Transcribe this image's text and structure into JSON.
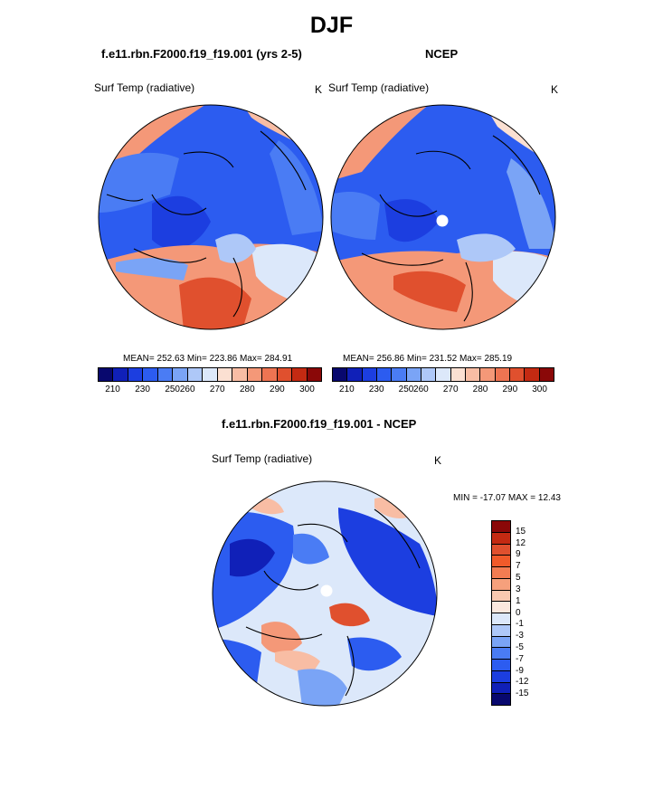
{
  "page": {
    "title": "DJF"
  },
  "panels": [
    {
      "name": "model",
      "subtitle": "f.e11.rbn.F2000.f19_f19.001 (yrs 2-5)",
      "left_label": "Surf Temp (radiative)",
      "right_label": "K",
      "stats": "MEAN= 252.63  Min= 223.86  Max= 284.91",
      "ticks": [
        "210",
        "230",
        "250",
        "260",
        "270",
        "280",
        "290",
        "300"
      ]
    },
    {
      "name": "ncep",
      "subtitle": "NCEP",
      "left_label": "Surf Temp (radiative)",
      "right_label": "K",
      "stats": "MEAN= 256.86  Min= 231.52  Max= 285.19",
      "ticks": [
        "210",
        "230",
        "250",
        "260",
        "270",
        "280",
        "290",
        "300"
      ]
    },
    {
      "name": "difference",
      "subtitle": "f.e11.rbn.F2000.f19_f19.001 - NCEP",
      "left_label": "Surf Temp (radiative)",
      "right_label": "K",
      "stats": "MIN = -17.07 MAX =  12.43",
      "ticks": [
        "15",
        "12",
        "9",
        "7",
        "5",
        "3",
        "1",
        "0",
        "-1",
        "-3",
        "-5",
        "-7",
        "-9",
        "-12",
        "-15"
      ]
    }
  ],
  "colors": {
    "temp_scale": [
      "#08086e",
      "#1020b8",
      "#1c3ee0",
      "#2c5cf0",
      "#4a7cf4",
      "#7aa4f6",
      "#aec8f8",
      "#dce8fa",
      "#fbe0d2",
      "#f8bda4",
      "#f49878",
      "#ee7452",
      "#e0502e",
      "#c42a12",
      "#8a0808"
    ],
    "diff_scale": [
      "#8a0808",
      "#c42a12",
      "#e0502e",
      "#f05a2a",
      "#f27c52",
      "#f6a07c",
      "#f9c8b0",
      "#fbe8de",
      "#dce8fa",
      "#aec8f8",
      "#7aa4f6",
      "#4a7cf4",
      "#2c5cf0",
      "#1c3ee0",
      "#1020b8",
      "#08086e"
    ]
  }
}
